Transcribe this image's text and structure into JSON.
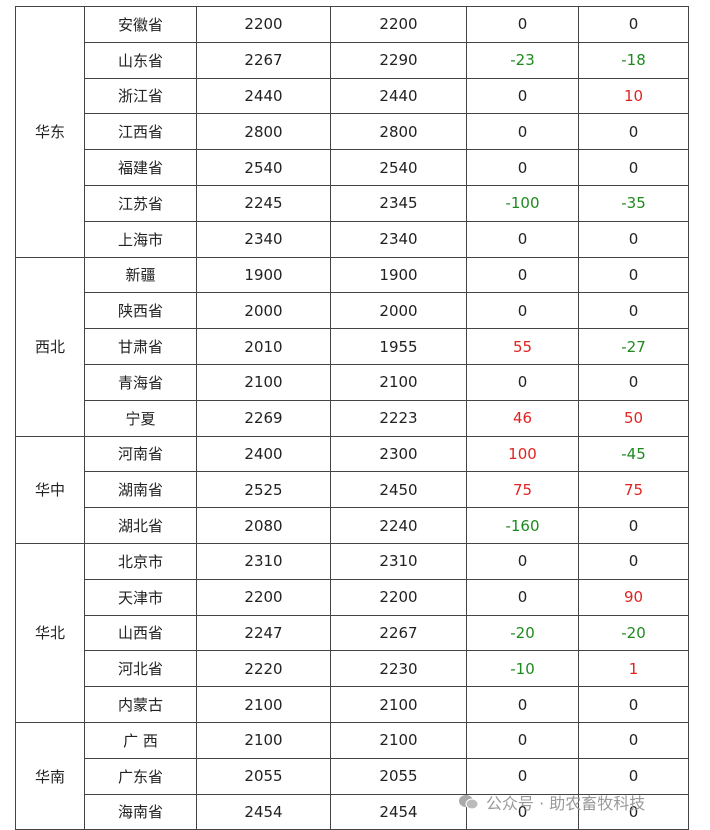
{
  "table": {
    "groups": [
      {
        "region": "华东",
        "rows": [
          [
            "安徽省",
            2200,
            2200,
            0,
            0
          ],
          [
            "山东省",
            2267,
            2290,
            -23,
            -18
          ],
          [
            "浙江省",
            2440,
            2440,
            0,
            10
          ],
          [
            "江西省",
            2800,
            2800,
            0,
            0
          ],
          [
            "福建省",
            2540,
            2540,
            0,
            0
          ],
          [
            "江苏省",
            2245,
            2345,
            -100,
            -35
          ],
          [
            "上海市",
            2340,
            2340,
            0,
            0
          ]
        ]
      },
      {
        "region": "西北",
        "rows": [
          [
            "新疆",
            1900,
            1900,
            0,
            0
          ],
          [
            "陕西省",
            2000,
            2000,
            0,
            0
          ],
          [
            "甘肃省",
            2010,
            1955,
            55,
            -27
          ],
          [
            "青海省",
            2100,
            2100,
            0,
            0
          ],
          [
            "宁夏",
            2269,
            2223,
            46,
            50
          ]
        ]
      },
      {
        "region": "华中",
        "rows": [
          [
            "河南省",
            2400,
            2300,
            100,
            -45
          ],
          [
            "湖南省",
            2525,
            2450,
            75,
            75
          ],
          [
            "湖北省",
            2080,
            2240,
            -160,
            0
          ]
        ]
      },
      {
        "region": "华北",
        "rows": [
          [
            "北京市",
            2310,
            2310,
            0,
            0
          ],
          [
            "天津市",
            2200,
            2200,
            0,
            90
          ],
          [
            "山西省",
            2247,
            2267,
            -20,
            -20
          ],
          [
            "河北省",
            2220,
            2230,
            -10,
            1
          ],
          [
            "内蒙古",
            2100,
            2100,
            0,
            0
          ]
        ]
      },
      {
        "region": "华南",
        "rows": [
          [
            "广 西",
            2100,
            2100,
            0,
            0
          ],
          [
            "广东省",
            2055,
            2055,
            0,
            0
          ],
          [
            "海南省",
            2454,
            2454,
            0,
            0
          ]
        ]
      }
    ]
  },
  "watermark": "公众号 · 助农畜牧科技"
}
